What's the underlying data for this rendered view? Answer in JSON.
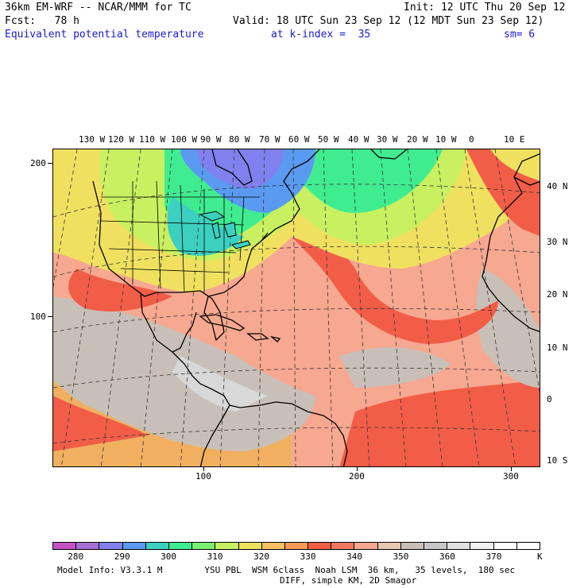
{
  "header": {
    "model": "36km EM-WRF -- NCAR/MMM for TC",
    "init": "Init: 12 UTC Thu 20 Sep 12",
    "fcst": "Fcst:   78 h",
    "valid": "Valid: 18 UTC Sun 23 Sep 12 (12 MDT Sun 23 Sep 12)",
    "field": "Equivalent potential temperature",
    "level": "at k-index =  35",
    "smooth": "sm= 6"
  },
  "map": {
    "top_lon_labels": [
      "130 W",
      "120 W",
      "110 W",
      "100 W",
      "90 W",
      "80 W",
      "70 W",
      "60 W",
      "50 W",
      "40 W",
      "30 W",
      "20 W",
      "10 W",
      "0",
      "10 E"
    ],
    "right_lat_labels": [
      "40 N",
      "30 N",
      "20 N",
      "10 N",
      "0",
      "10 S"
    ],
    "left_grid_labels": [
      "200",
      "100"
    ],
    "bottom_grid_labels": [
      "100",
      "200",
      "300"
    ]
  },
  "colorbar": {
    "labels": [
      "280",
      "290",
      "300",
      "310",
      "320",
      "330",
      "340",
      "350",
      "360",
      "370"
    ],
    "unit": "K",
    "colors": [
      "#c653c6",
      "#a66fd6",
      "#8080ee",
      "#5a9af0",
      "#3cd0c0",
      "#40ec90",
      "#78f070",
      "#c8f060",
      "#f0e060",
      "#f8c060",
      "#f89a58",
      "#f25d48",
      "#f07860",
      "#f6a890",
      "#e8c8b0",
      "#c8c0b8",
      "#c8c8c8",
      "#e0e0e0",
      "#f2f2f2",
      "#ffffff",
      "#ffffff"
    ]
  },
  "footer": {
    "line1": "Model Info: V3.3.1 M        YSU PBL  WSM 6class  Noah LSM  36 km,   35 levels,  180 sec",
    "line2": "DIFF, simple KM, 2D Smagor"
  }
}
